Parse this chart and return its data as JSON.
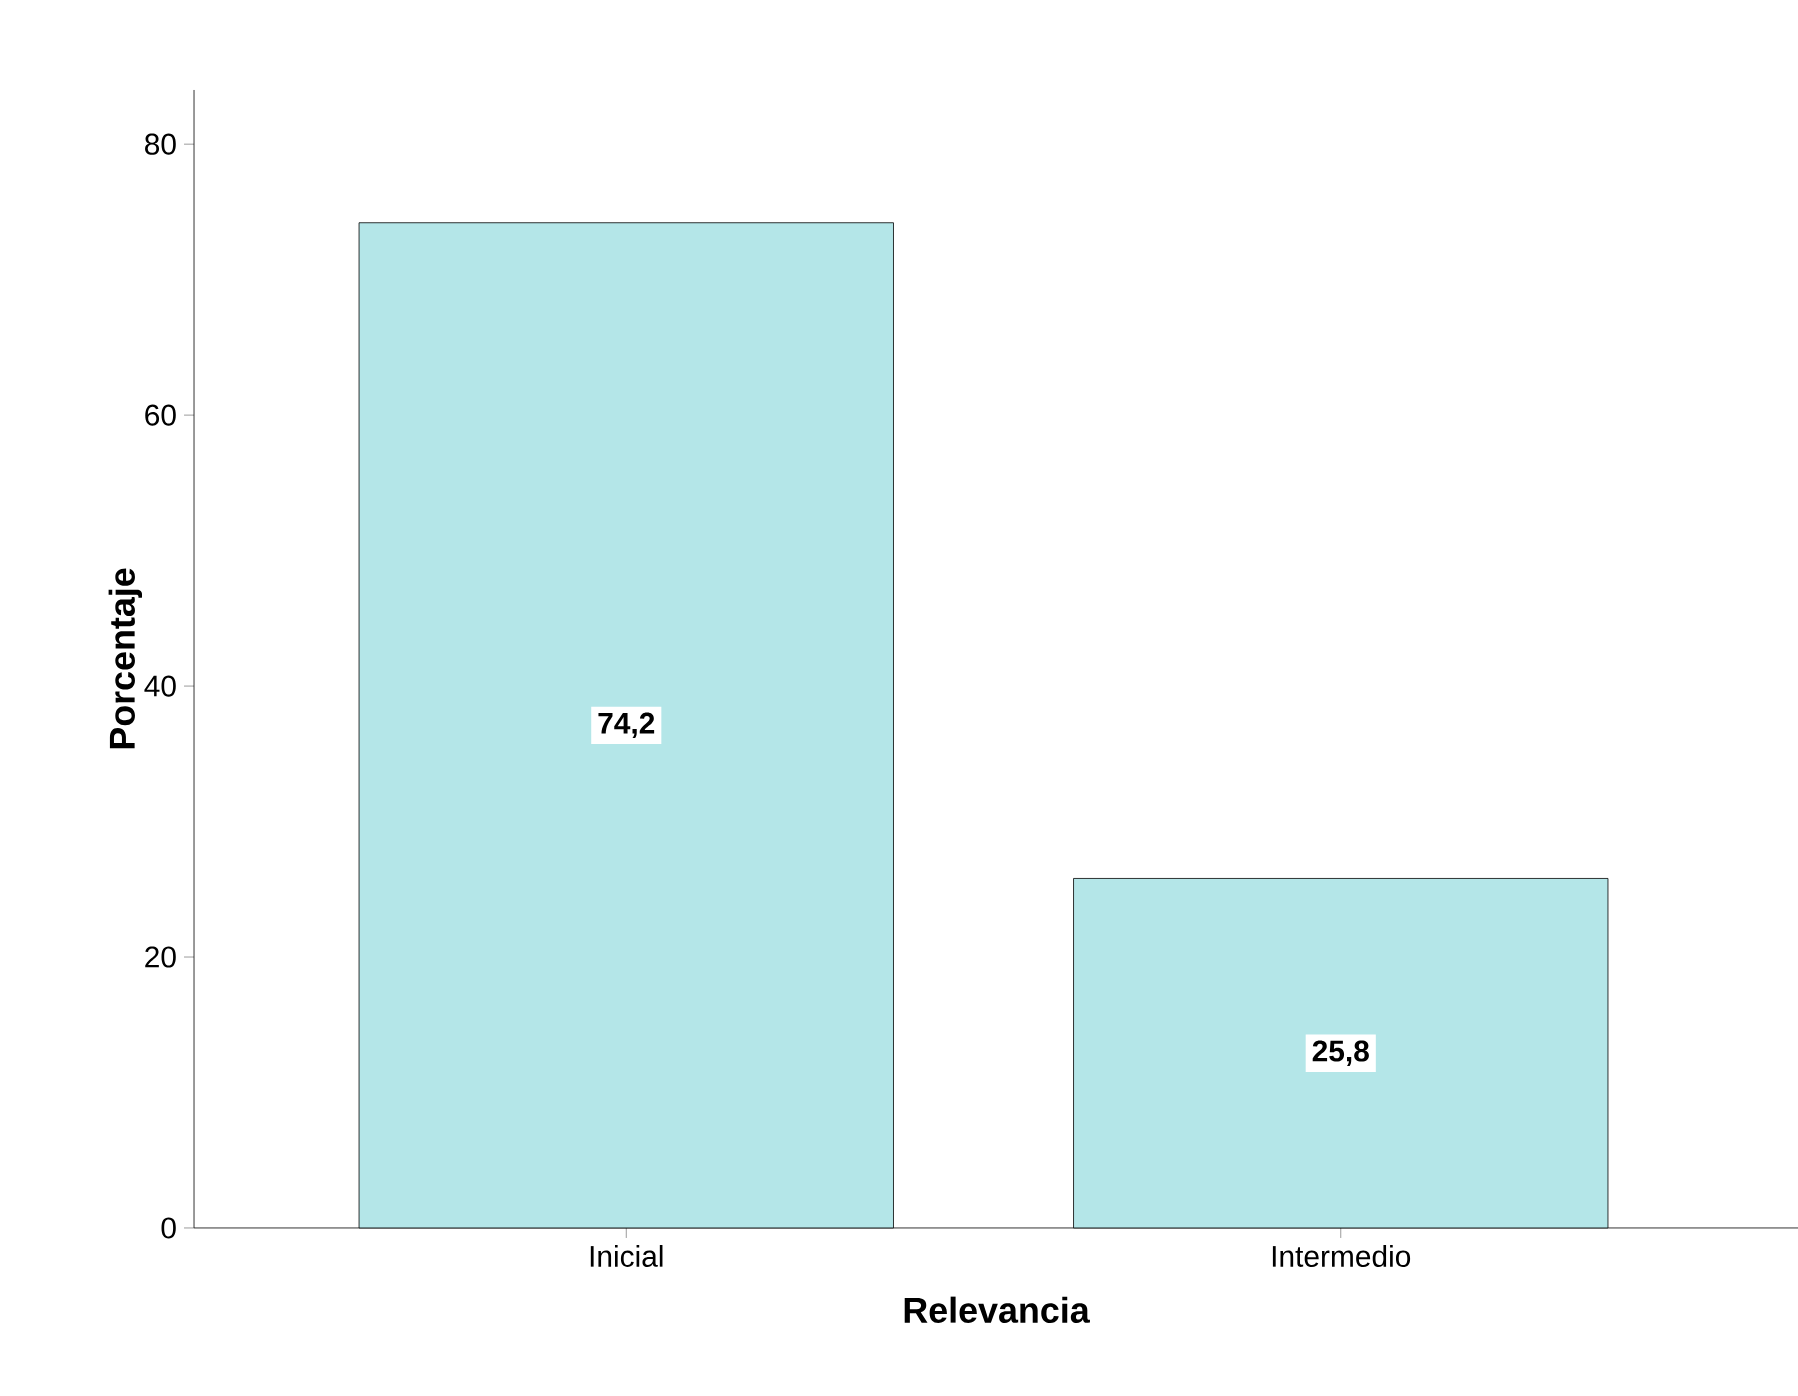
{
  "chart_data": {
    "type": "bar",
    "xlabel": "Relevancia",
    "ylabel": "Porcentaje",
    "categories": [
      "Inicial",
      "Intermedio"
    ],
    "values": [
      74.2,
      25.8
    ],
    "value_labels": [
      "74,2",
      "25,8"
    ],
    "color": "#b4e6e8",
    "ylim": [
      0,
      84
    ],
    "yticks": [
      0,
      20,
      40,
      60,
      80
    ]
  }
}
